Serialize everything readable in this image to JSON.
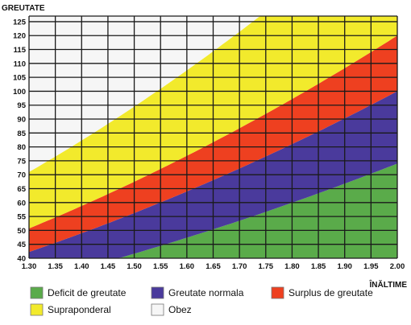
{
  "chart_data": {
    "type": "area",
    "ylabel": "GREUTATE",
    "xlabel": "ÎNĂLTIME",
    "x_ticks": [
      "1.30",
      "1.35",
      "1.40",
      "1.45",
      "1.50",
      "1.55",
      "1.60",
      "1.65",
      "1.70",
      "1.75",
      "1.80",
      "1.85",
      "1.90",
      "1.95",
      "2.00"
    ],
    "y_ticks": [
      "40",
      "45",
      "50",
      "55",
      "60",
      "65",
      "70",
      "75",
      "80",
      "85",
      "90",
      "95",
      "100",
      "105",
      "110",
      "115",
      "120",
      "125"
    ],
    "xlim": [
      1.3,
      2.0
    ],
    "ylim": [
      40,
      127
    ],
    "grid": true,
    "legend_position": "bottom",
    "boundaries_bmi": [
      18.5,
      25,
      30,
      42
    ],
    "series": [
      {
        "name": "Deficit de greutate",
        "color": "#5aab4a",
        "bmi_range": [
          0,
          18.5
        ]
      },
      {
        "name": "Greutate normala",
        "color": "#4a3a9c",
        "bmi_range": [
          18.5,
          25
        ]
      },
      {
        "name": "Surplus de greutate",
        "color": "#ee4020",
        "bmi_range": [
          25,
          30
        ]
      },
      {
        "name": "Supraponderal",
        "color": "#f2ea2c",
        "bmi_range": [
          30,
          42
        ]
      },
      {
        "name": "Obez",
        "color": "#f6f6f6",
        "bmi_range": [
          42,
          999
        ]
      }
    ],
    "grid_color": "#1a1a1a"
  }
}
